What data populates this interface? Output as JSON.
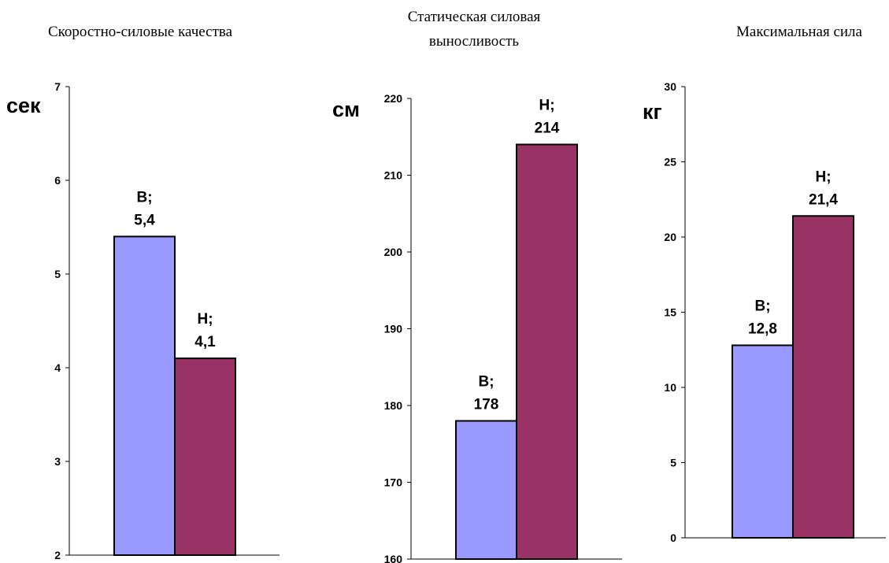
{
  "colors": {
    "series_b": "#9999ff",
    "series_h": "#993366",
    "outline": "#000000"
  },
  "chart_data": [
    {
      "type": "bar",
      "title_lines": [
        "Скоростно-силовые качества"
      ],
      "ylabel": "сек",
      "ylim": [
        2,
        7
      ],
      "yticks": [
        "2",
        "3",
        "4",
        "5",
        "6",
        "7"
      ],
      "grid": false,
      "legend": "none",
      "bars": [
        {
          "category": "В",
          "value": 5.4,
          "label_line1": "В;",
          "label_line2": "5,4"
        },
        {
          "category": "Н",
          "value": 4.1,
          "label_line1": "Н;",
          "label_line2": "4,1"
        }
      ]
    },
    {
      "type": "bar",
      "title_lines": [
        "Статическая силовая",
        "выносливость"
      ],
      "ylabel": "см",
      "ylim": [
        160,
        220
      ],
      "yticks": [
        "160",
        "170",
        "180",
        "190",
        "200",
        "210",
        "220"
      ],
      "grid": false,
      "legend": "none",
      "bars": [
        {
          "category": "В",
          "value": 178,
          "label_line1": "В;",
          "label_line2": "178"
        },
        {
          "category": "Н",
          "value": 214,
          "label_line1": "Н;",
          "label_line2": "214"
        }
      ]
    },
    {
      "type": "bar",
      "title_lines": [
        "Максимальная сила"
      ],
      "ylabel": "кг",
      "ylim": [
        0,
        30
      ],
      "yticks": [
        "0",
        "5",
        "10",
        "15",
        "20",
        "25",
        "30"
      ],
      "grid": false,
      "legend": "none",
      "bars": [
        {
          "category": "В",
          "value": 12.8,
          "label_line1": "В;",
          "label_line2": "12,8"
        },
        {
          "category": "Н",
          "value": 21.4,
          "label_line1": "Н;",
          "label_line2": "21,4"
        }
      ]
    }
  ]
}
